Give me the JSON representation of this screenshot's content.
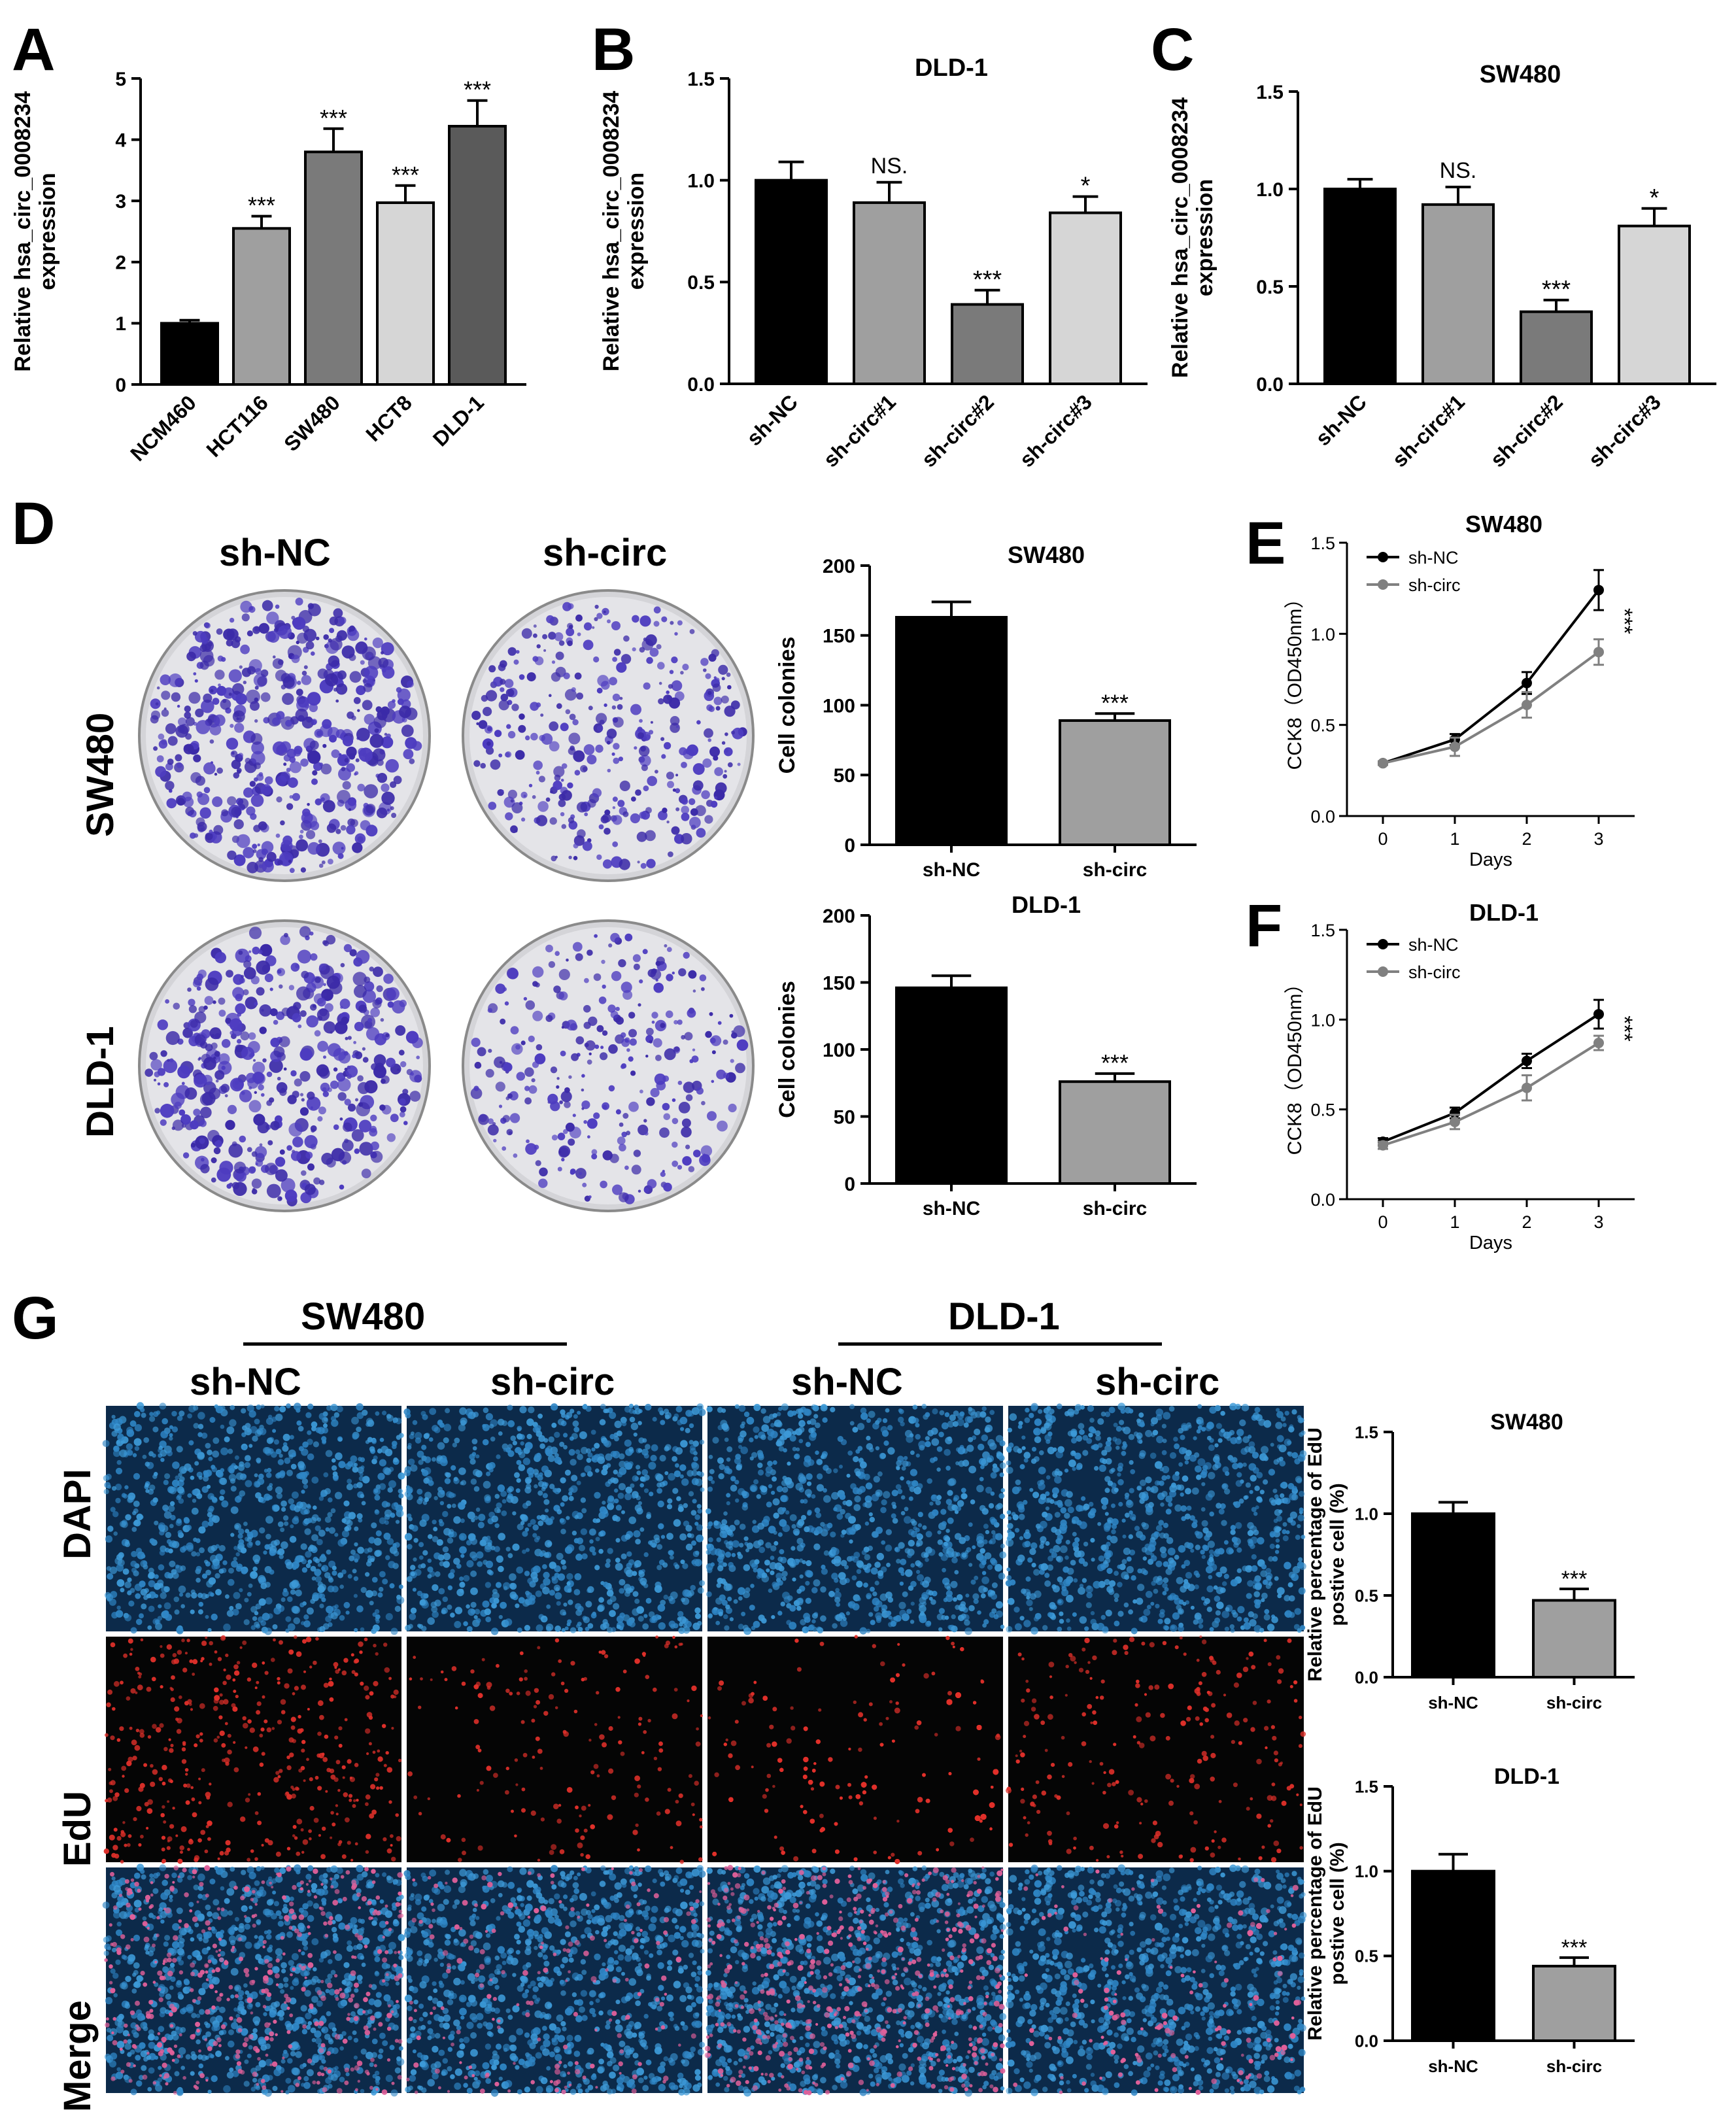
{
  "panels": {
    "A": "A",
    "B": "B",
    "C": "C",
    "D": "D",
    "E": "E",
    "F": "F",
    "G": "G"
  },
  "colors": {
    "black": "#000000",
    "grey_light": "#d6d6d6",
    "grey_mid": "#9f9f9f",
    "grey_dark": "#7a7a7a",
    "grey_darker": "#5a5a5a",
    "line_shnc": "#000000",
    "line_shcirc": "#808080",
    "dish_colony": "#3b2aa8",
    "dapi": "#2f86c6",
    "edu": "#e0302a"
  },
  "charts": {
    "A": {
      "type": "bar",
      "title": "",
      "ylabel": [
        "Relative hsa_circ_0008234",
        "expression"
      ],
      "ylim": [
        0,
        5
      ],
      "yticks": [
        0,
        1,
        2,
        3,
        4,
        5
      ],
      "categories": [
        "NCM460",
        "HCT116",
        "SW480",
        "HCT8",
        "DLD-1"
      ],
      "values": [
        1.0,
        2.55,
        3.8,
        2.97,
        4.22
      ],
      "errors": [
        0.05,
        0.2,
        0.38,
        0.28,
        0.42
      ],
      "sig": [
        "",
        "***",
        "***",
        "***",
        "***"
      ],
      "colors": [
        "#000000",
        "#9f9f9f",
        "#7a7a7a",
        "#d6d6d6",
        "#5a5a5a"
      ]
    },
    "B": {
      "type": "bar",
      "title": "DLD-1",
      "ylabel": [
        "Relative hsa_circ_0008234",
        "expression"
      ],
      "ylim": [
        0,
        1.5
      ],
      "yticks": [
        0.0,
        0.5,
        1.0,
        1.5
      ],
      "tickfmt": 1,
      "categories": [
        "sh-NC",
        "sh-circ#1",
        "sh-circ#2",
        "sh-circ#3"
      ],
      "values": [
        1.0,
        0.89,
        0.39,
        0.84
      ],
      "errors": [
        0.09,
        0.1,
        0.07,
        0.08
      ],
      "sig": [
        "",
        "NS.",
        "***",
        "*"
      ],
      "colors": [
        "#000000",
        "#9f9f9f",
        "#7a7a7a",
        "#d6d6d6"
      ]
    },
    "C": {
      "type": "bar",
      "title": "SW480",
      "ylabel": [
        "Relative hsa_circ_0008234",
        "expression"
      ],
      "ylim": [
        0,
        1.5
      ],
      "yticks": [
        0.0,
        0.5,
        1.0,
        1.5
      ],
      "tickfmt": 1,
      "categories": [
        "sh-NC",
        "sh-circ#1",
        "sh-circ#2",
        "sh-circ#3"
      ],
      "values": [
        1.0,
        0.92,
        0.37,
        0.81
      ],
      "errors": [
        0.05,
        0.09,
        0.06,
        0.09
      ],
      "sig": [
        "",
        "NS.",
        "***",
        "*"
      ],
      "colors": [
        "#000000",
        "#9f9f9f",
        "#7a7a7a",
        "#d6d6d6"
      ]
    },
    "D1": {
      "type": "bar",
      "title": "SW480",
      "ylabel": [
        "Cell colonies"
      ],
      "ylim": [
        0,
        200
      ],
      "yticks": [
        0,
        50,
        100,
        150,
        200
      ],
      "categories": [
        "sh-NC",
        "sh-circ"
      ],
      "values": [
        163,
        89
      ],
      "errors": [
        11,
        5
      ],
      "sig": [
        "",
        "***"
      ],
      "colors": [
        "#000000",
        "#9f9f9f"
      ]
    },
    "D2": {
      "type": "bar",
      "title": "DLD-1",
      "ylabel": [
        "Cell colonies"
      ],
      "ylim": [
        0,
        200
      ],
      "yticks": [
        0,
        50,
        100,
        150,
        200
      ],
      "categories": [
        "sh-NC",
        "sh-circ"
      ],
      "values": [
        146,
        76
      ],
      "errors": [
        9,
        6
      ],
      "sig": [
        "",
        "***"
      ],
      "colors": [
        "#000000",
        "#9f9f9f"
      ]
    },
    "E": {
      "type": "line",
      "title": "SW480",
      "ylabel": [
        "CCK8（OD450nm）"
      ],
      "xlabel": "Days",
      "ylim": [
        0,
        1.5
      ],
      "yticks": [
        0.0,
        0.5,
        1.0,
        1.5
      ],
      "tickfmt": 1,
      "x": [
        0,
        1,
        2,
        3
      ],
      "xlim": [
        -0.5,
        3.5
      ],
      "series": [
        {
          "name": "sh-NC",
          "values": [
            0.29,
            0.42,
            0.73,
            1.24
          ],
          "errors": [
            0.01,
            0.03,
            0.06,
            0.11
          ],
          "color": "#000000"
        },
        {
          "name": "sh-circ",
          "values": [
            0.29,
            0.38,
            0.61,
            0.9
          ],
          "errors": [
            0.01,
            0.05,
            0.07,
            0.07
          ],
          "color": "#808080"
        }
      ],
      "sig": "***"
    },
    "F": {
      "type": "line",
      "title": "DLD-1",
      "ylabel": [
        "CCK8（OD450nm）"
      ],
      "xlabel": "Days",
      "ylim": [
        0,
        1.5
      ],
      "yticks": [
        0.0,
        0.5,
        1.0,
        1.5
      ],
      "tickfmt": 1,
      "x": [
        0,
        1,
        2,
        3
      ],
      "xlim": [
        -0.5,
        3.5
      ],
      "series": [
        {
          "name": "sh-NC",
          "values": [
            0.32,
            0.48,
            0.77,
            1.03
          ],
          "errors": [
            0.02,
            0.03,
            0.04,
            0.08
          ],
          "color": "#000000"
        },
        {
          "name": "sh-circ",
          "values": [
            0.3,
            0.43,
            0.62,
            0.87
          ],
          "errors": [
            0.02,
            0.04,
            0.07,
            0.04
          ],
          "color": "#808080"
        }
      ],
      "sig": "***"
    },
    "G1": {
      "type": "bar",
      "title": "SW480",
      "ylabel": [
        "Relative percentage of EdU",
        "postive cell (%)"
      ],
      "ylim": [
        0,
        1.5
      ],
      "yticks": [
        0.0,
        0.5,
        1.0,
        1.5
      ],
      "tickfmt": 1,
      "categories": [
        "sh-NC",
        "sh-circ"
      ],
      "values": [
        1.0,
        0.47
      ],
      "errors": [
        0.07,
        0.07
      ],
      "sig": [
        "",
        "***"
      ],
      "colors": [
        "#000000",
        "#9f9f9f"
      ]
    },
    "G2": {
      "type": "bar",
      "title": "DLD-1",
      "ylabel": [
        "Relative percentage of EdU",
        "postive cell (%)"
      ],
      "ylim": [
        0,
        1.5
      ],
      "yticks": [
        0.0,
        0.5,
        1.0,
        1.5
      ],
      "tickfmt": 1,
      "categories": [
        "sh-NC",
        "sh-circ"
      ],
      "values": [
        1.0,
        0.44
      ],
      "errors": [
        0.1,
        0.05
      ],
      "sig": [
        "",
        "***"
      ],
      "colors": [
        "#000000",
        "#9f9f9f"
      ]
    }
  },
  "colony_panel": {
    "columns": [
      "sh-NC",
      "sh-circ"
    ],
    "rows": [
      "SW480",
      "DLD-1"
    ]
  },
  "edu_panel": {
    "groups": [
      "SW480",
      "DLD-1"
    ],
    "columns": [
      "sh-NC",
      "sh-circ",
      "sh-NC",
      "sh-circ"
    ],
    "rows": [
      "DAPI",
      "EdU",
      "Merge"
    ]
  }
}
